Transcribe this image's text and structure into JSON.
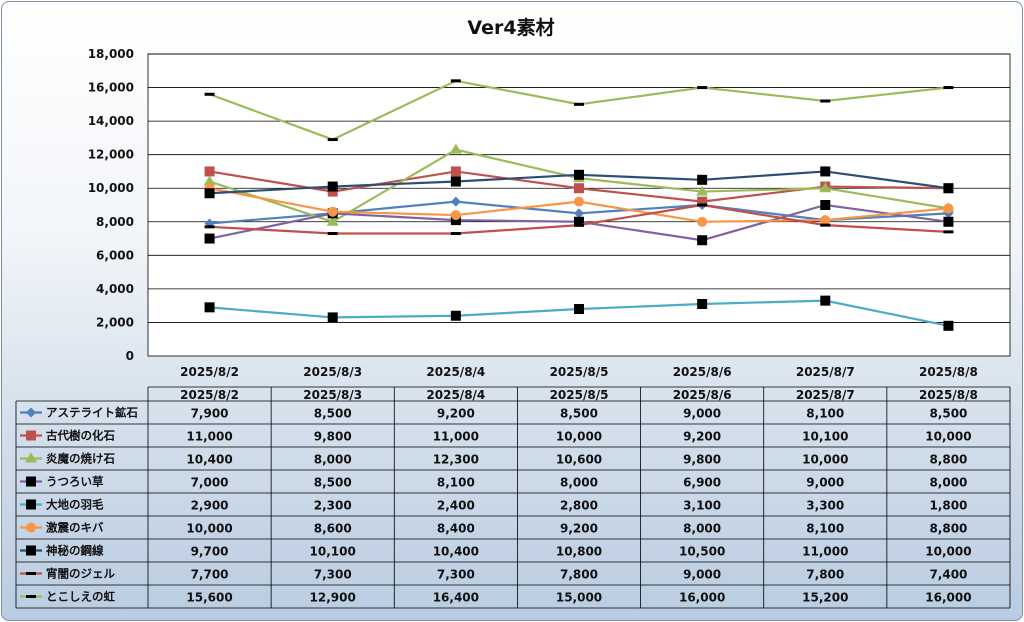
{
  "chart_data": {
    "type": "line",
    "title": "Ver4素材",
    "categories": [
      "2025/8/2",
      "2025/8/3",
      "2025/8/4",
      "2025/8/5",
      "2025/8/6",
      "2025/8/7",
      "2025/8/8"
    ],
    "ylim": [
      0,
      18000
    ],
    "yticks": [
      "0",
      "2,000",
      "4,000",
      "6,000",
      "8,000",
      "10,000",
      "12,000",
      "14,000",
      "16,000",
      "18,000"
    ],
    "grid": true,
    "legend": "data-table",
    "series": [
      {
        "name": "アステライト鉱石",
        "color": "#4f81bd",
        "marker": "diamond",
        "values": [
          7900,
          8500,
          9200,
          8500,
          9000,
          8100,
          8500
        ],
        "labels": [
          "7,900",
          "8,500",
          "9,200",
          "8,500",
          "9,000",
          "8,100",
          "8,500"
        ]
      },
      {
        "name": "古代樹の化石",
        "color": "#c0504d",
        "marker": "square",
        "values": [
          11000,
          9800,
          11000,
          10000,
          9200,
          10100,
          10000
        ],
        "labels": [
          "11,000",
          "9,800",
          "11,000",
          "10,000",
          "9,200",
          "10,100",
          "10,000"
        ]
      },
      {
        "name": "炎魔の焼け石",
        "color": "#9bbb59",
        "marker": "triangle",
        "values": [
          10400,
          8000,
          12300,
          10600,
          9800,
          10000,
          8800
        ],
        "labels": [
          "10,400",
          "8,000",
          "12,300",
          "10,600",
          "9,800",
          "10,000",
          "8,800"
        ]
      },
      {
        "name": "うつろい草",
        "color": "#8064a2",
        "marker": "blacksquare",
        "values": [
          7000,
          8500,
          8100,
          8000,
          6900,
          9000,
          8000
        ],
        "labels": [
          "7,000",
          "8,500",
          "8,100",
          "8,000",
          "6,900",
          "9,000",
          "8,000"
        ]
      },
      {
        "name": "大地の羽毛",
        "color": "#4bacc6",
        "marker": "blacksquare",
        "values": [
          2900,
          2300,
          2400,
          2800,
          3100,
          3300,
          1800
        ],
        "labels": [
          "2,900",
          "2,300",
          "2,400",
          "2,800",
          "3,100",
          "3,300",
          "1,800"
        ]
      },
      {
        "name": "激震のキバ",
        "color": "#f79646",
        "marker": "circle",
        "values": [
          10000,
          8600,
          8400,
          9200,
          8000,
          8100,
          8800
        ],
        "labels": [
          "10,000",
          "8,600",
          "8,400",
          "9,200",
          "8,000",
          "8,100",
          "8,800"
        ]
      },
      {
        "name": "神秘の鋼線",
        "color": "#2c4d75",
        "marker": "blacksquare",
        "values": [
          9700,
          10100,
          10400,
          10800,
          10500,
          11000,
          10000
        ],
        "labels": [
          "9,700",
          "10,100",
          "10,400",
          "10,800",
          "10,500",
          "11,000",
          "10,000"
        ]
      },
      {
        "name": "宵闇のジェル",
        "color": "#c0504d",
        "marker": "dash",
        "values": [
          7700,
          7300,
          7300,
          7800,
          9000,
          7800,
          7400
        ],
        "labels": [
          "7,700",
          "7,300",
          "7,300",
          "7,800",
          "9,000",
          "7,800",
          "7,400"
        ]
      },
      {
        "name": "とこしえの虹",
        "color": "#9bbb59",
        "marker": "dash",
        "values": [
          15600,
          12900,
          16400,
          15000,
          16000,
          15200,
          16000
        ],
        "labels": [
          "15,600",
          "12,900",
          "16,400",
          "15,000",
          "16,000",
          "15,200",
          "16,000"
        ]
      }
    ]
  }
}
